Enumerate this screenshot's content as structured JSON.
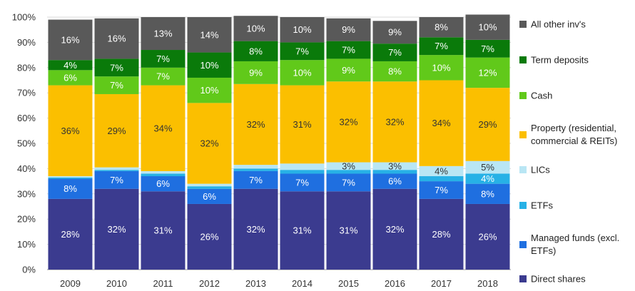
{
  "chart_data": {
    "type": "bar",
    "stacked": true,
    "title": "",
    "xlabel": "",
    "ylabel": "",
    "ylim": [
      0,
      100
    ],
    "yticks": [
      "0%",
      "10%",
      "20%",
      "30%",
      "40%",
      "50%",
      "60%",
      "70%",
      "80%",
      "90%",
      "100%"
    ],
    "categories": [
      "2009",
      "2010",
      "2011",
      "2012",
      "2013",
      "2014",
      "2015",
      "2016",
      "2017",
      "2018"
    ],
    "legend_position": "right",
    "series": [
      {
        "name": "Direct shares",
        "color": "#3b3b8f",
        "values": [
          28,
          32,
          31,
          26,
          32,
          31,
          31,
          32,
          28,
          26
        ],
        "labels": [
          "28%",
          "32%",
          "31%",
          "26%",
          "32%",
          "31%",
          "31%",
          "32%",
          "28%",
          "26%"
        ],
        "label_color": "#ffffff"
      },
      {
        "name": "Managed funds (excl. ETFs)",
        "color": "#1f6fe0",
        "values": [
          8,
          7,
          6,
          6,
          7,
          7,
          7,
          6,
          7,
          8
        ],
        "labels": [
          "8%",
          "7%",
          "6%",
          "6%",
          "7%",
          "7%",
          "7%",
          "6%",
          "7%",
          "8%"
        ],
        "label_color": "#ffffff"
      },
      {
        "name": "ETFs",
        "color": "#27b1e6",
        "values": [
          0.5,
          0.5,
          1,
          1,
          1,
          1.5,
          1.5,
          1.5,
          2,
          4
        ],
        "labels": [
          "",
          "",
          "",
          "",
          "",
          "",
          "",
          "",
          "",
          "4%"
        ],
        "label_color": "#ffffff"
      },
      {
        "name": "LICs",
        "color": "#b9e6f4",
        "values": [
          0.5,
          1,
          1,
          1,
          1.5,
          2.5,
          3,
          3,
          4,
          5
        ],
        "labels": [
          "",
          "",
          "",
          "",
          "",
          "",
          "3%",
          "3%",
          "4%",
          "5%"
        ],
        "label_color": "#333333"
      },
      {
        "name": "Property (residential, commercial & REITs)",
        "color": "#fbbf00",
        "values": [
          36,
          29,
          34,
          32,
          32,
          31,
          32,
          32,
          34,
          29
        ],
        "labels": [
          "36%",
          "29%",
          "34%",
          "32%",
          "32%",
          "31%",
          "32%",
          "32%",
          "34%",
          "29%"
        ],
        "label_color": "#333333"
      },
      {
        "name": "Cash",
        "color": "#61c91a",
        "values": [
          6,
          7,
          7,
          10,
          9,
          10,
          9,
          8,
          10,
          12
        ],
        "labels": [
          "6%",
          "7%",
          "7%",
          "10%",
          "9%",
          "10%",
          "9%",
          "8%",
          "10%",
          "12%"
        ],
        "label_color": "#ffffff"
      },
      {
        "name": "Term deposits",
        "color": "#0a7a0a",
        "values": [
          4,
          7,
          7,
          10,
          8,
          7,
          7,
          7,
          7,
          7
        ],
        "labels": [
          "4%",
          "7%",
          "7%",
          "10%",
          "8%",
          "7%",
          "7%",
          "7%",
          "7%",
          "7%"
        ],
        "label_color": "#ffffff"
      },
      {
        "name": "All other inv's",
        "color": "#595959",
        "values": [
          16,
          16,
          13,
          14,
          10,
          10,
          9,
          9,
          8,
          10
        ],
        "labels": [
          "16%",
          "16%",
          "13%",
          "14%",
          "10%",
          "10%",
          "9%",
          "9%",
          "8%",
          "10%"
        ],
        "label_color": "#ffffff"
      }
    ]
  }
}
